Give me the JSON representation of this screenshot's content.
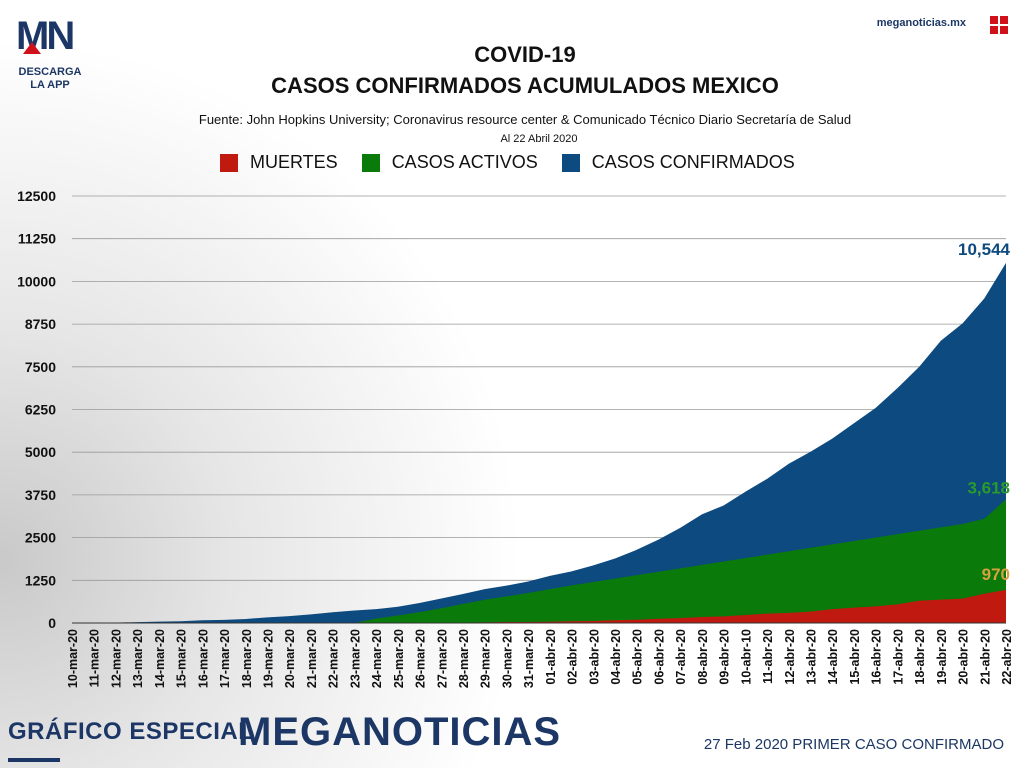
{
  "header": {
    "logo_text": "MN",
    "logo_sub": "DESCARGA LA APP",
    "site": "meganoticias.mx",
    "title_line1": "COVID-19",
    "title_line2": "CASOS CONFIRMADOS ACUMULADOS MEXICO",
    "source": "Fuente: John Hopkins University; Coronavirus resource center & Comunicado Técnico Diario Secretaría de Salud",
    "date": "Al 22 Abril 2020"
  },
  "legend": {
    "muertes": "MUERTES",
    "activos": "CASOS ACTIVOS",
    "confirmados": "CASOS CONFIRMADOS"
  },
  "colors": {
    "muertes": "#c0190f",
    "activos": "#0a7a0a",
    "confirmados": "#0d4a7f",
    "brand": "#1c3765"
  },
  "footer": {
    "left": "GRÁFICO ESPECIAL",
    "brand": "MEGANOTICIAS",
    "right": "27 Feb 2020 PRIMER CASO CONFIRMADO"
  },
  "chart_data": {
    "type": "area",
    "title": "CASOS CONFIRMADOS ACUMULADOS MEXICO",
    "ylim": [
      0,
      12500
    ],
    "yticks": [
      0,
      1250,
      2500,
      3750,
      5000,
      6250,
      7500,
      8750,
      10000,
      11250,
      12500
    ],
    "categories": [
      "10-mar-20",
      "11-mar-20",
      "12-mar-20",
      "13-mar-20",
      "14-mar-20",
      "15-mar-20",
      "16-mar-20",
      "17-mar-20",
      "18-mar-20",
      "19-mar-20",
      "20-mar-20",
      "21-mar-20",
      "22-mar-20",
      "23-mar-20",
      "24-mar-20",
      "25-mar-20",
      "26-mar-20",
      "27-mar-20",
      "28-mar-20",
      "29-mar-20",
      "30-mar-20",
      "31-mar-20",
      "01-abr-20",
      "02-abr-20",
      "03-abr-20",
      "04-abr-20",
      "05-abr-20",
      "06-abr-20",
      "07-abr-20",
      "08-abr-20",
      "09-abr-20",
      "10-abr-10",
      "11-abr-20",
      "12-abr-20",
      "13-abr-20",
      "14-abr-20",
      "15-abr-20",
      "16-abr-20",
      "17-abr-20",
      "18-abr-20",
      "19-abr-20",
      "20-abr-20",
      "21-abr-20",
      "22-abr-20"
    ],
    "series": [
      {
        "name": "CASOS CONFIRMADOS",
        "key": "confirmados",
        "values": [
          7,
          7,
          12,
          26,
          41,
          53,
          82,
          93,
          118,
          164,
          203,
          251,
          316,
          367,
          405,
          475,
          585,
          717,
          848,
          993,
          1094,
          1215,
          1378,
          1510,
          1688,
          1890,
          2143,
          2439,
          2785,
          3181,
          3441,
          3844,
          4219,
          4661,
          5014,
          5399,
          5847,
          6297,
          6875,
          7497,
          8261,
          8772,
          9501,
          10544
        ],
        "end_label": "10,544"
      },
      {
        "name": "CASOS ACTIVOS",
        "key": "activos",
        "values": [
          0,
          0,
          0,
          0,
          0,
          0,
          0,
          0,
          0,
          0,
          0,
          0,
          0,
          0,
          130,
          220,
          320,
          430,
          560,
          680,
          780,
          880,
          990,
          1100,
          1200,
          1300,
          1400,
          1500,
          1600,
          1700,
          1800,
          1900,
          2000,
          2100,
          2200,
          2300,
          2400,
          2500,
          2600,
          2700,
          2800,
          2900,
          3050,
          3618
        ],
        "end_label": "3,618"
      },
      {
        "name": "MUERTES",
        "key": "muertes",
        "values": [
          0,
          0,
          0,
          0,
          0,
          0,
          0,
          0,
          0,
          1,
          2,
          2,
          2,
          4,
          5,
          6,
          8,
          12,
          16,
          20,
          28,
          29,
          37,
          50,
          60,
          79,
          94,
          125,
          141,
          174,
          194,
          233,
          273,
          296,
          332,
          406,
          449,
          486,
          546,
          650,
          686,
          712,
          857,
          970
        ],
        "end_label": "970"
      }
    ]
  }
}
